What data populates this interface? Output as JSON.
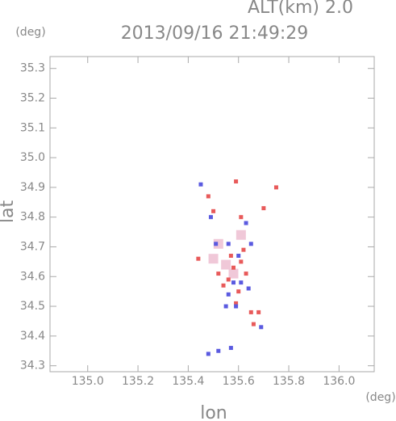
{
  "chart_data": {
    "type": "scatter",
    "title": "2013/09/16 21:49:29",
    "subtitle": "ALT(km) 2.0",
    "y_unit": "(deg)",
    "x_unit": "(deg)",
    "xlabel": "lon",
    "ylabel": "lat",
    "xlim": [
      134.85,
      136.14
    ],
    "ylim": [
      34.28,
      35.34
    ],
    "xticks": [
      {
        "value": 135.0,
        "label": "135.0"
      },
      135.2,
      135.4,
      135.6,
      135.8,
      {
        "value": 136.0,
        "label": "136.0"
      }
    ],
    "yticks": [
      34.3,
      34.4,
      34.5,
      34.6,
      34.7,
      34.8,
      34.9,
      {
        "value": 35.0,
        "label": "35.0"
      },
      35.1,
      35.2,
      35.3
    ],
    "series": [
      {
        "color": "#f0c8d8",
        "x": [
          135.52,
          135.55,
          135.61,
          135.58,
          135.5
        ],
        "values": [
          34.71,
          34.64,
          34.74,
          34.61,
          34.66
        ]
      },
      {
        "color": "#e85a5a",
        "x": [
          135.59,
          135.48,
          135.5,
          135.7,
          135.61,
          135.44,
          135.52,
          135.57,
          135.61,
          135.56,
          135.54,
          135.63,
          135.6,
          135.65,
          135.68,
          135.66,
          135.59,
          135.58,
          135.62,
          135.75
        ],
        "values": [
          34.92,
          34.87,
          34.82,
          34.83,
          34.8,
          34.66,
          34.61,
          34.67,
          34.65,
          34.59,
          34.57,
          34.61,
          34.55,
          34.48,
          34.48,
          34.44,
          34.51,
          34.63,
          34.69,
          34.9
        ]
      },
      {
        "color": "#5a5ae0",
        "x": [
          135.45,
          135.49,
          135.63,
          135.65,
          135.56,
          135.6,
          135.61,
          135.56,
          135.59,
          135.55,
          135.57,
          135.52,
          135.48,
          135.69,
          135.58,
          135.51,
          135.64
        ],
        "values": [
          34.91,
          34.8,
          34.78,
          34.71,
          34.71,
          34.67,
          34.58,
          34.54,
          34.5,
          34.5,
          34.36,
          34.35,
          34.34,
          34.43,
          34.58,
          34.71,
          34.56
        ]
      }
    ]
  }
}
